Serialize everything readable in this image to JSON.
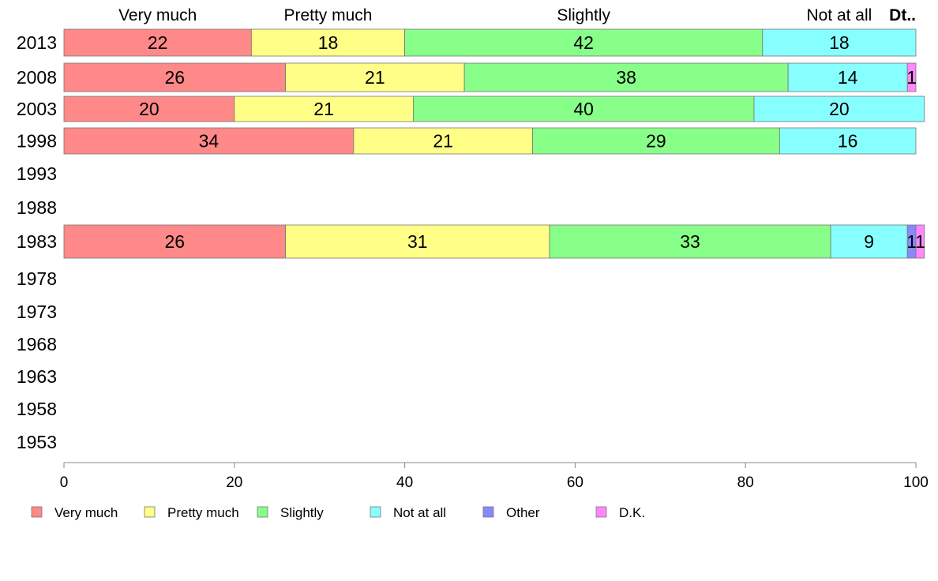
{
  "chart_data": {
    "type": "bar",
    "orientation": "horizontal",
    "stacked": true,
    "xlim": [
      0,
      100
    ],
    "x_ticks": [
      "0",
      "20",
      "40",
      "60",
      "80",
      "100"
    ],
    "categories": [
      "2013",
      "2008",
      "2003",
      "1998",
      "1993",
      "1988",
      "1983",
      "1978",
      "1973",
      "1968",
      "1963",
      "1958",
      "1953"
    ],
    "top_labels": [
      "Very much",
      "Pretty much",
      "Slightly",
      "Not at all",
      "Dt.."
    ],
    "legend_position": "bottom",
    "series": [
      {
        "name": "Very much",
        "color": "#ff8888",
        "values": [
          22,
          26,
          20,
          34,
          null,
          null,
          26,
          null,
          null,
          null,
          null,
          null,
          null
        ]
      },
      {
        "name": "Pretty much",
        "color": "#ffff88",
        "values": [
          18,
          21,
          21,
          21,
          null,
          null,
          31,
          null,
          null,
          null,
          null,
          null,
          null
        ]
      },
      {
        "name": "Slightly",
        "color": "#88ff88",
        "values": [
          42,
          38,
          40,
          29,
          null,
          null,
          33,
          null,
          null,
          null,
          null,
          null,
          null
        ]
      },
      {
        "name": "Not at all",
        "color": "#88ffff",
        "values": [
          18,
          14,
          20,
          16,
          null,
          null,
          9,
          null,
          null,
          null,
          null,
          null,
          null
        ]
      },
      {
        "name": "Other",
        "color": "#8888ff",
        "values": [
          0,
          0,
          0,
          0,
          null,
          null,
          1,
          null,
          null,
          null,
          null,
          null,
          null
        ]
      },
      {
        "name": "D.K.",
        "color": "#ff88ff",
        "values": [
          0,
          1,
          0,
          0,
          null,
          null,
          1,
          null,
          null,
          null,
          null,
          null,
          null
        ]
      }
    ]
  }
}
